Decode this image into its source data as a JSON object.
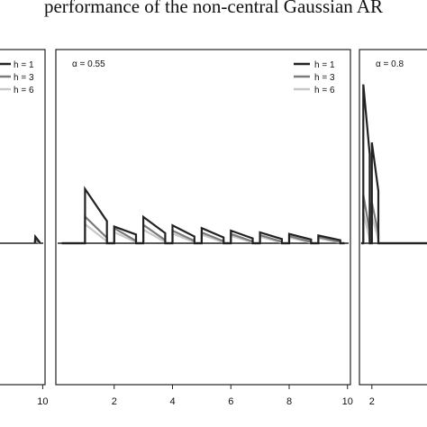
{
  "title": "performance of the non-central Gaussian AR",
  "colors": {
    "h1": "#222222",
    "h3": "#7a7a7a",
    "h6": "#c8c8c8",
    "frame": "#222222"
  },
  "chart_data": [
    {
      "type": "line",
      "panel": "left",
      "label": "",
      "xticks": [
        10
      ],
      "xlim": [
        0,
        10.5
      ],
      "ylim": [
        0,
        1
      ],
      "legend": [
        "h = 1",
        "h = 3",
        "h = 6"
      ],
      "legend_position": "top-right",
      "series": [
        {
          "name": "h = 1",
          "x": [
            8.3,
            8.4,
            9.3,
            9.4
          ],
          "y": [
            0.0,
            0.034,
            0.007,
            0.0
          ]
        },
        {
          "name": "h = 3",
          "x": [
            8.3,
            8.4,
            9.3,
            9.4
          ],
          "y": [
            0.0,
            0.02,
            0.004,
            0.0
          ]
        },
        {
          "name": "h = 6",
          "x": [
            8.3,
            8.4,
            9.3,
            9.4
          ],
          "y": [
            0.0,
            0.012,
            0.002,
            0.0
          ]
        }
      ]
    },
    {
      "type": "line",
      "panel": "middle",
      "label": "α = 0.55",
      "xticks": [
        2,
        4,
        6,
        8,
        10
      ],
      "xlim": [
        0,
        10.1
      ],
      "ylim": [
        0,
        1
      ],
      "legend": [
        "h = 1",
        "h = 3",
        "h = 6"
      ],
      "legend_position": "top-right",
      "series": [
        {
          "name": "h = 1",
          "peaks": [
            0.28,
            0.086,
            0.136,
            0.092,
            0.078,
            0.065,
            0.056,
            0.048,
            0.04
          ],
          "ends": [
            0.114,
            0.045,
            0.052,
            0.035,
            0.03,
            0.025,
            0.022,
            0.019,
            0.016
          ]
        },
        {
          "name": "h = 3",
          "peaks": [
            0.137,
            0.077,
            0.095,
            0.065,
            0.056,
            0.048,
            0.042,
            0.037,
            0.032
          ],
          "ends": [
            0.028,
            0.012,
            0.016,
            0.012,
            0.01,
            0.009,
            0.008,
            0.007,
            0.006
          ]
        },
        {
          "name": "h = 6",
          "peaks": [
            0.098,
            0.057,
            0.07,
            0.05,
            0.044,
            0.038,
            0.034,
            0.03,
            0.026
          ],
          "ends": [
            0.01,
            0.005,
            0.006,
            0.005,
            0.004,
            0.004,
            0.003,
            0.003,
            0.003
          ]
        }
      ]
    },
    {
      "type": "line",
      "panel": "right",
      "label": "α = 0.8",
      "xticks": [
        2
      ],
      "xlim": [
        0.55,
        10
      ],
      "ylim": [
        0,
        1
      ],
      "legend": [],
      "series": [
        {
          "name": "h = 1",
          "peaks": [
            0.82,
            0.52
          ],
          "ends": [
            0.46,
            0.27
          ]
        },
        {
          "name": "h = 3",
          "peaks": [
            0.25,
            0.21
          ],
          "ends": [
            0.06,
            0.05
          ]
        },
        {
          "name": "h = 6",
          "peaks": [
            0.16,
            0.14
          ],
          "ends": [
            0.02,
            0.02
          ]
        }
      ]
    }
  ]
}
